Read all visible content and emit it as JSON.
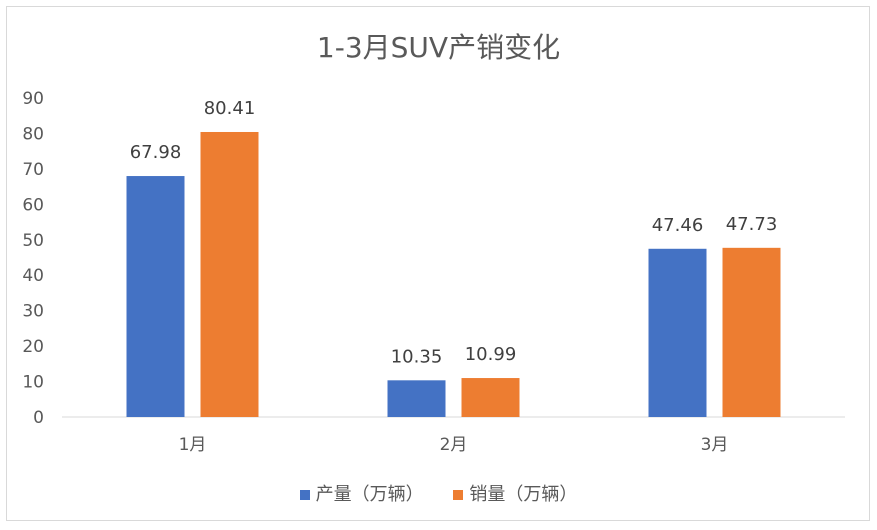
{
  "chart_data": {
    "type": "bar",
    "title": "1-3月SUV产销变化",
    "categories": [
      "1月",
      "2月",
      "3月"
    ],
    "series": [
      {
        "name": "产量（万辆）",
        "values": [
          67.98,
          10.35,
          47.46
        ],
        "color": "#4472C4"
      },
      {
        "name": "销量（万辆）",
        "values": [
          80.41,
          10.99,
          47.73
        ],
        "color": "#ED7D31"
      }
    ],
    "ylim": [
      0,
      90
    ],
    "yticks": [
      0,
      10,
      20,
      30,
      40,
      50,
      60,
      70,
      80,
      90
    ],
    "grid": false,
    "legend_position": "bottom",
    "data_labels": [
      "67.98",
      "80.41",
      "10.35",
      "10.99",
      "47.46",
      "47.73"
    ]
  }
}
